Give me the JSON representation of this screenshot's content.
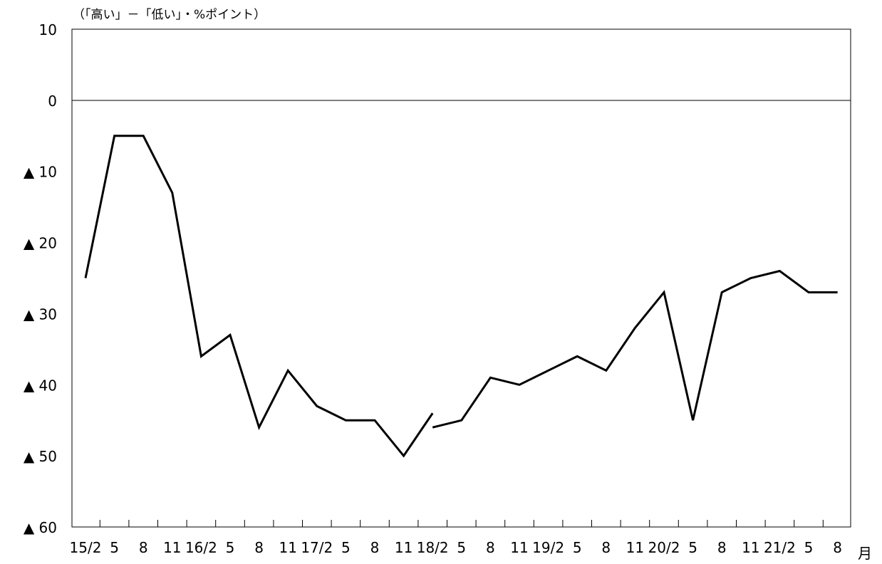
{
  "chart_data": {
    "type": "line",
    "unit_label": "（「高い」－「低い」・%ポイント）",
    "x_unit": "月",
    "y_tick_labels": [
      "10",
      "0",
      "▲ 10",
      "▲ 20",
      "▲ 30",
      "▲ 40",
      "▲ 50",
      "▲ 60"
    ],
    "y_tick_values": [
      10,
      0,
      -10,
      -20,
      -30,
      -40,
      -50,
      -60
    ],
    "ylim": [
      -60,
      10
    ],
    "x_tick_labels": [
      "15/2",
      "5",
      "8",
      "11",
      "16/2",
      "5",
      "8",
      "11",
      "17/2",
      "5",
      "8",
      "11",
      "18/2",
      "5",
      "8",
      "11",
      "19/2",
      "5",
      "8",
      "11",
      "20/2",
      "5",
      "8",
      "11",
      "21/2",
      "5",
      "8"
    ],
    "x": [
      "15/2",
      "15/5",
      "15/8",
      "15/11",
      "16/2",
      "16/5",
      "16/8",
      "16/11",
      "17/2",
      "17/5",
      "17/8",
      "17/11",
      "18/2",
      "18/5",
      "18/8",
      "18/11",
      "19/2",
      "19/5",
      "19/8",
      "19/11",
      "20/2",
      "20/5",
      "20/8",
      "20/11",
      "21/2",
      "21/5",
      "21/8"
    ],
    "series": [
      {
        "segments": [
          [
            [
              0,
              -25
            ],
            [
              1,
              -5
            ],
            [
              2,
              -5
            ],
            [
              3,
              -13
            ],
            [
              4,
              -36
            ],
            [
              5,
              -33
            ],
            [
              6,
              -46
            ],
            [
              7,
              -38
            ],
            [
              8,
              -43
            ],
            [
              9,
              -45
            ],
            [
              10,
              -45
            ],
            [
              11,
              -50
            ],
            [
              12,
              -44
            ]
          ],
          [
            [
              12,
              -46
            ],
            [
              13,
              -45
            ],
            [
              14,
              -39
            ],
            [
              15,
              -40
            ],
            [
              16,
              -38
            ],
            [
              17,
              -36
            ],
            [
              18,
              -38
            ],
            [
              19,
              -32
            ],
            [
              20,
              -27
            ],
            [
              21,
              -45
            ],
            [
              22,
              -27
            ],
            [
              23,
              -25
            ],
            [
              24,
              -24
            ],
            [
              25,
              -27
            ],
            [
              26,
              -27
            ]
          ]
        ]
      }
    ],
    "grid": false,
    "zero_line": true,
    "line_color": "#000000"
  }
}
